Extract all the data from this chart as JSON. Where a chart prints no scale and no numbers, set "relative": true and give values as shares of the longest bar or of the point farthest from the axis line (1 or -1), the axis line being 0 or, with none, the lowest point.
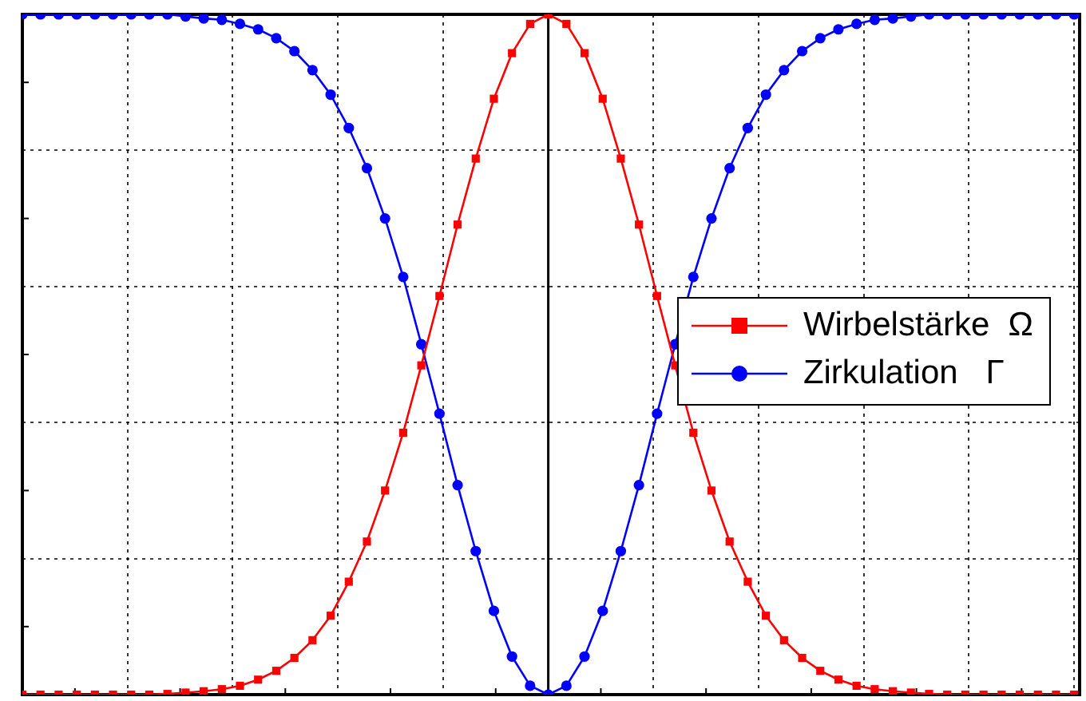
{
  "chart_data": {
    "type": "line",
    "relative": true,
    "grid": true,
    "legend": "right",
    "line_style": "solid",
    "categories": [
      null,
      null,
      null,
      null,
      null,
      null,
      null,
      null,
      null,
      null,
      null,
      null,
      null,
      null,
      null,
      null,
      null,
      null,
      null,
      null,
      null,
      null,
      null,
      null,
      null,
      null,
      null,
      null,
      null,
      null,
      null,
      null,
      null,
      null,
      null,
      null,
      null,
      null,
      null,
      null,
      null,
      null,
      null,
      null,
      null,
      null,
      null,
      null,
      null,
      null,
      null,
      null,
      null,
      null,
      null,
      null,
      null,
      null,
      null
    ],
    "series": [
      {
        "name": "Wirbelstärke  Ω",
        "color": "#ff0000",
        "marker": "square",
        "values": [
          0,
          0,
          0,
          0,
          0,
          0,
          0,
          0,
          0.001,
          0.003,
          0.005,
          0.008,
          0.013,
          0.022,
          0.035,
          0.054,
          0.08,
          0.116,
          0.166,
          0.225,
          0.3,
          0.385,
          0.484,
          0.586,
          0.691,
          0.788,
          0.876,
          0.943,
          0.986,
          1,
          0.986,
          0.943,
          0.876,
          0.788,
          0.691,
          0.586,
          0.484,
          0.385,
          0.3,
          0.225,
          0.166,
          0.116,
          0.08,
          0.054,
          0.035,
          0.022,
          0.013,
          0.008,
          0.005,
          0.003,
          0.001,
          0,
          0,
          0,
          0,
          0,
          0,
          0,
          0
        ]
      },
      {
        "name": "Zirkulation   Γ",
        "color": "#0000ff",
        "marker": "circle",
        "values": [
          1,
          1,
          1,
          1,
          1,
          1,
          1,
          1,
          1,
          0.997,
          0.994,
          0.992,
          0.986,
          0.978,
          0.965,
          0.946,
          0.918,
          0.882,
          0.833,
          0.774,
          0.7,
          0.614,
          0.515,
          0.413,
          0.308,
          0.211,
          0.123,
          0.056,
          0.013,
          0,
          0.013,
          0.056,
          0.123,
          0.211,
          0.308,
          0.413,
          0.515,
          0.614,
          0.7,
          0.774,
          0.833,
          0.882,
          0.918,
          0.946,
          0.965,
          0.978,
          0.986,
          0.992,
          0.994,
          0.997,
          1,
          1,
          1,
          1,
          1,
          1,
          1,
          1,
          1
        ]
      }
    ]
  }
}
